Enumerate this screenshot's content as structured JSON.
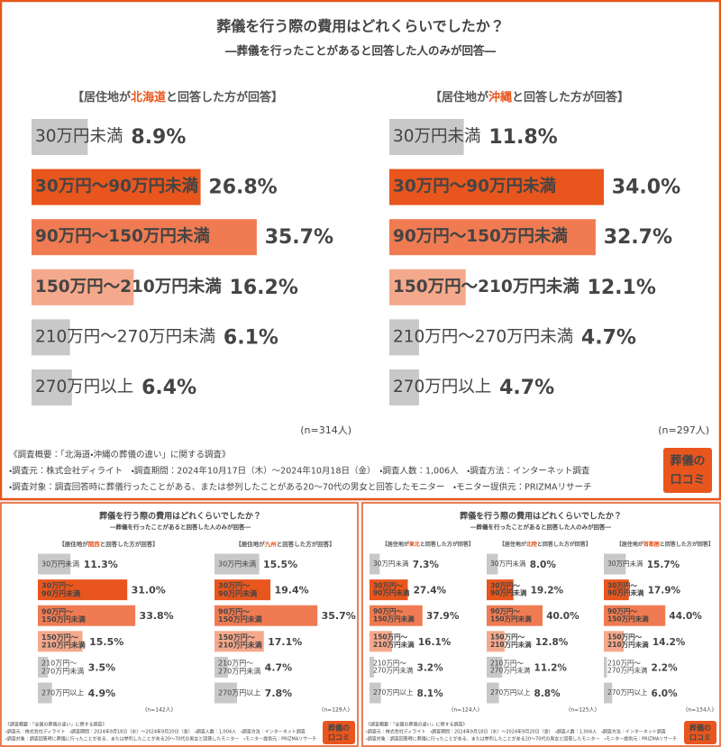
{
  "panels": [
    {
      "title": "葬儀を行う際の費用はどれくらいでしたか？",
      "subtitle": "―葬儀を行ったことがあると回答した人のみが回答―",
      "notes": [
        "《調査概要：「北海道・沖縄の葬儀の違い」に関する調査》",
        "・調査元：株式会社ディライト　・調査期間：2024年10月17日（木）～2024年10月18日（金）　・調査人数：1,006人　・調査方法：インターネット調査",
        "・調査対象：調査回答時に葬儀行ったことがある、または参列したことがある20～70代の男女と回答したモニター　・モニター提供元：PRIZMAリサーチ"
      ],
      "logo": [
        "葬儀の",
        "口コミ"
      ]
    },
    {
      "title": "葬儀を行う際の費用はどれくらいでしたか？",
      "subtitle": "―葬儀を行ったことがあると回答した人のみが回答―",
      "notes": [
        "《調査概要：「全国の葬儀の違い」に関する調査》",
        "・調査元：株式会社ディライト　・調査期間：2024年9月18日（水）～2024年9月20日（金）　・調査人数：1,004人　・調査方法：インターネット調査",
        "・調査対象：調査回答時に葬儀に行ったことがある、または参列したことがある20～70代の男女と回答したモニター　・モニター提供元：PRIZMAリサーチ"
      ],
      "logo": [
        "葬儀の",
        "口コミ"
      ]
    },
    {
      "title": "葬儀を行う際の費用はどれくらいでしたか？",
      "subtitle": "―葬儀を行ったことがあると回答した人のみが回答―",
      "notes": [
        "《調査概要：「全国の葬儀の違い」に関する調査》",
        "・調査元：株式会社ディライト　・調査期間：2024年9月18日（水）～2024年9月20日（金）　・調査人数：1,004人　・調査方法：インターネット調査",
        "・調査対象：調査回答時に葬儀に行ったことがある、または参列したことがある20～70代の男女と回答したモニター　・モニター提供元：PRIZMAリサーチ"
      ],
      "logo": [
        "葬儀の",
        "口コミ"
      ]
    }
  ],
  "chart_data": [
    {
      "type": "bar",
      "header": [
        "【居住地が",
        "北海道",
        "と回答した方が回答】"
      ],
      "categories": [
        [
          "30万円未満"
        ],
        [
          "30万円～90万円未満"
        ],
        [
          "90万円～150万円未満"
        ],
        [
          "150万円～210万円未満"
        ],
        [
          "210万円～270万円未満"
        ],
        [
          "270万円以上"
        ]
      ],
      "values": [
        8.9,
        26.8,
        35.7,
        16.2,
        6.1,
        6.4
      ],
      "value_labels": [
        "8.9%",
        "26.8%",
        "35.7%",
        "16.2%",
        "6.1%",
        "6.4%"
      ],
      "colors": [
        "#c8c8c8",
        "#e8561e",
        "#f07b52",
        "#f5a98c",
        "#c8c8c8",
        "#c8c8c8"
      ],
      "sample": "(n=314人)"
    },
    {
      "type": "bar",
      "header": [
        "【居住地が",
        "沖縄",
        "と回答した方が回答】"
      ],
      "categories": [
        [
          "30万円未満"
        ],
        [
          "30万円～90万円未満"
        ],
        [
          "90万円～150万円未満"
        ],
        [
          "150万円～210万円未満"
        ],
        [
          "210万円～270万円未満"
        ],
        [
          "270万円以上"
        ]
      ],
      "values": [
        11.8,
        34.0,
        32.7,
        12.1,
        4.7,
        4.7
      ],
      "value_labels": [
        "11.8%",
        "34.0%",
        "32.7%",
        "12.1%",
        "4.7%",
        "4.7%"
      ],
      "colors": [
        "#c8c8c8",
        "#e8561e",
        "#f07b52",
        "#f5a98c",
        "#c8c8c8",
        "#c8c8c8"
      ],
      "sample": "(n=297人)"
    },
    {
      "type": "bar",
      "header": [
        "【居住地が",
        "関西",
        "と回答した方が回答】"
      ],
      "categories": [
        [
          "30万円未満"
        ],
        [
          "30万円～",
          "90万円未満"
        ],
        [
          "90万円～",
          "150万円未満"
        ],
        [
          "150万円～",
          "210万円未満"
        ],
        [
          "210万円～",
          "270万円未満"
        ],
        [
          "270万円以上"
        ]
      ],
      "values": [
        11.3,
        31.0,
        33.8,
        15.5,
        3.5,
        4.9
      ],
      "value_labels": [
        "11.3%",
        "31.0%",
        "33.8%",
        "15.5%",
        "3.5%",
        "4.9%"
      ],
      "colors": [
        "#c8c8c8",
        "#e8561e",
        "#f07b52",
        "#f5a98c",
        "#c8c8c8",
        "#c8c8c8"
      ],
      "sample": "(n=142人)"
    },
    {
      "type": "bar",
      "header": [
        "【居住地が",
        "九州",
        "と回答した方が回答】"
      ],
      "categories": [
        [
          "30万円未満"
        ],
        [
          "30万円～",
          "90万円未満"
        ],
        [
          "90万円～",
          "150万円未満"
        ],
        [
          "150万円～",
          "210万円未満"
        ],
        [
          "210万円～",
          "270万円未満"
        ],
        [
          "270万円以上"
        ]
      ],
      "values": [
        15.5,
        19.4,
        35.7,
        17.1,
        4.7,
        7.8
      ],
      "value_labels": [
        "15.5%",
        "19.4%",
        "35.7%",
        "17.1%",
        "4.7%",
        "7.8%"
      ],
      "colors": [
        "#c8c8c8",
        "#e8561e",
        "#f07b52",
        "#f5a98c",
        "#c8c8c8",
        "#c8c8c8"
      ],
      "sample": "(n=129人)"
    },
    {
      "type": "bar",
      "header": [
        "【居住地が",
        "東北",
        "と回答した方が回答】"
      ],
      "categories": [
        [
          "30万円未満"
        ],
        [
          "30万円～",
          "90万円未満"
        ],
        [
          "90万円～",
          "150万円未満"
        ],
        [
          "150万円～",
          "210万円未満"
        ],
        [
          "210万円～",
          "270万円未満"
        ],
        [
          "270万円以上"
        ]
      ],
      "values": [
        7.3,
        27.4,
        37.9,
        16.1,
        3.2,
        8.1
      ],
      "value_labels": [
        "7.3%",
        "27.4%",
        "37.9%",
        "16.1%",
        "3.2%",
        "8.1%"
      ],
      "colors": [
        "#c8c8c8",
        "#e8561e",
        "#f07b52",
        "#f5a98c",
        "#c8c8c8",
        "#c8c8c8"
      ],
      "sample": "(n=124人)"
    },
    {
      "type": "bar",
      "header": [
        "【居住地が",
        "北陸",
        "と回答した方が回答】"
      ],
      "categories": [
        [
          "30万円未満"
        ],
        [
          "30万円～",
          "90万円未満"
        ],
        [
          "90万円～",
          "150万円未満"
        ],
        [
          "150万円～",
          "210万円未満"
        ],
        [
          "210万円～",
          "270万円未満"
        ],
        [
          "270万円以上"
        ]
      ],
      "values": [
        8.0,
        19.2,
        40.0,
        12.8,
        11.2,
        8.8
      ],
      "value_labels": [
        "8.0%",
        "19.2%",
        "40.0%",
        "12.8%",
        "11.2%",
        "8.8%"
      ],
      "colors": [
        "#c8c8c8",
        "#e8561e",
        "#f07b52",
        "#f5a98c",
        "#c8c8c8",
        "#c8c8c8"
      ],
      "sample": "(n=125人)"
    },
    {
      "type": "bar",
      "header": [
        "【居住地が",
        "首都圏",
        "と回答した方が回答】"
      ],
      "categories": [
        [
          "30万円未満"
        ],
        [
          "30万円～",
          "90万円未満"
        ],
        [
          "90万円～",
          "150万円未満"
        ],
        [
          "150万円～",
          "210万円未満"
        ],
        [
          "210万円～",
          "270万円未満"
        ],
        [
          "270万円以上"
        ]
      ],
      "values": [
        15.7,
        17.9,
        44.0,
        14.2,
        2.2,
        6.0
      ],
      "value_labels": [
        "15.7%",
        "17.9%",
        "44.0%",
        "14.2%",
        "2.2%",
        "6.0%"
      ],
      "colors": [
        "#c8c8c8",
        "#e8561e",
        "#f07b52",
        "#f5a98c",
        "#c8c8c8",
        "#c8c8c8"
      ],
      "sample": "(n=134人)"
    }
  ]
}
